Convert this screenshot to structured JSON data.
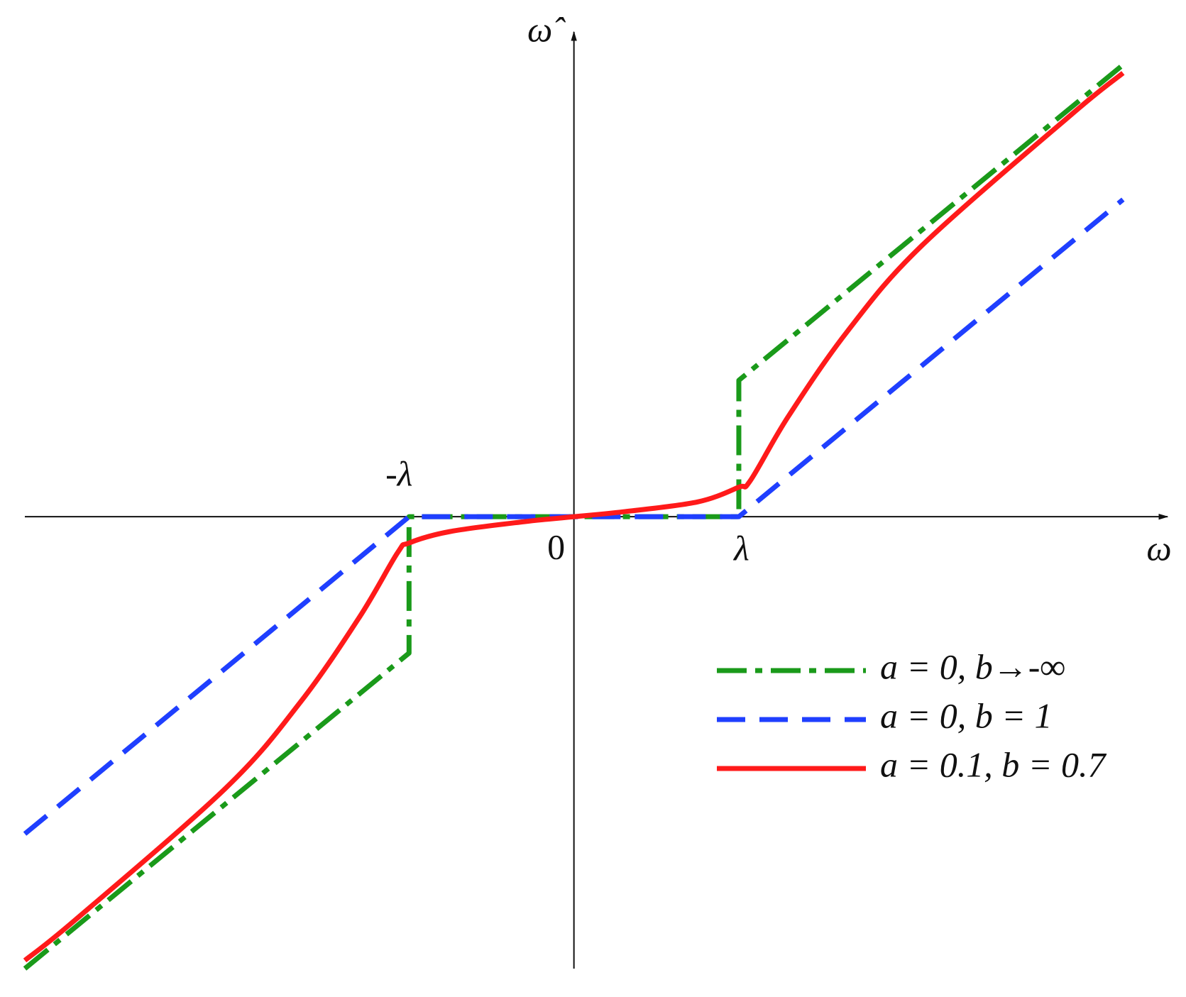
{
  "chart_data": {
    "type": "line",
    "x_label": "ω",
    "y_label": "ω̂",
    "xlim": [
      -3.33,
      3.6
    ],
    "ylim": [
      -2.75,
      2.95
    ],
    "xticks": [
      {
        "value": -1,
        "label": "-λ"
      },
      0,
      {
        "value": 1,
        "label": "λ"
      }
    ],
    "legend": "lower right",
    "series": [
      {
        "name": "a = 0, b→-∞",
        "color": "#1a9a1a",
        "dash": "dashdot",
        "x": [
          -3.33,
          -1,
          -1,
          1,
          1,
          3.33
        ],
        "values": [
          -2.75,
          -0.83,
          0,
          0,
          0.83,
          2.75
        ]
      },
      {
        "name": "a = 0, b = 1",
        "color": "#1f3fff",
        "dash": "dashed",
        "x": [
          -3.33,
          -1,
          1,
          3.33
        ],
        "values": [
          -1.93,
          0,
          0,
          1.93
        ]
      },
      {
        "name": "a = 0.1, b = 0.7",
        "color": "#ff1a1a",
        "dash": "solid",
        "x": [
          -3.33,
          -3.02,
          -2.11,
          -1.66,
          -1.3,
          -1.07,
          -1,
          -0.75,
          -0.3,
          0,
          0.3,
          0.75,
          1,
          1.07,
          1.3,
          1.66,
          2.11,
          3.02,
          3.33
        ],
        "values": [
          -2.7,
          -2.45,
          -1.65,
          -1.13,
          -0.61,
          -0.22,
          -0.16,
          -0.09,
          -0.03,
          0,
          0.03,
          0.09,
          0.18,
          0.22,
          0.61,
          1.13,
          1.65,
          2.45,
          2.7
        ]
      }
    ]
  }
}
